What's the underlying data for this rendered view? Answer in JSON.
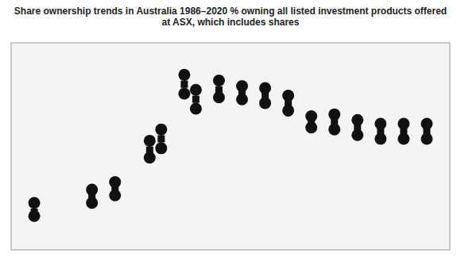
{
  "chart_data": {
    "type": "dumbbell",
    "title": "Share ownership trends in Australia 1986–2020 % owning all listed investment products offered at ASX, which includes shares",
    "x": [
      1986,
      1991,
      1993,
      1996,
      1997,
      1999,
      2000,
      2002,
      2004,
      2006,
      2008,
      2010,
      2012,
      2014,
      2016,
      2018,
      2020
    ],
    "series": [
      {
        "color": "#111111",
        "marker": "circle",
        "values": [
          12.5,
          16.0,
          18.0,
          29.0,
          32.0,
          46.5,
          42.5,
          45.0,
          43.5,
          43.0,
          41.0,
          35.5,
          36.0,
          34.5,
          33.5,
          33.5,
          33.5
        ]
      },
      {
        "color": "#111111",
        "marker": "circle",
        "values": [
          9.0,
          12.5,
          14.5,
          24.5,
          27.0,
          41.5,
          37.5,
          40.5,
          40.0,
          39.0,
          37.0,
          32.5,
          32.0,
          30.5,
          29.5,
          29.5,
          29.5
        ]
      },
      {
        "color": "#111111",
        "marker": "square",
        "values": [
          10.0,
          14.0,
          16.0,
          26.5,
          29.5,
          44.0,
          40.0,
          42.5,
          41.5,
          41.0,
          39.0,
          34.0,
          34.0,
          32.5,
          31.5,
          31.5,
          31.5
        ]
      }
    ],
    "xlim": [
      1984,
      2022
    ],
    "ylim": [
      0,
      55
    ],
    "tick_labels": false
  }
}
